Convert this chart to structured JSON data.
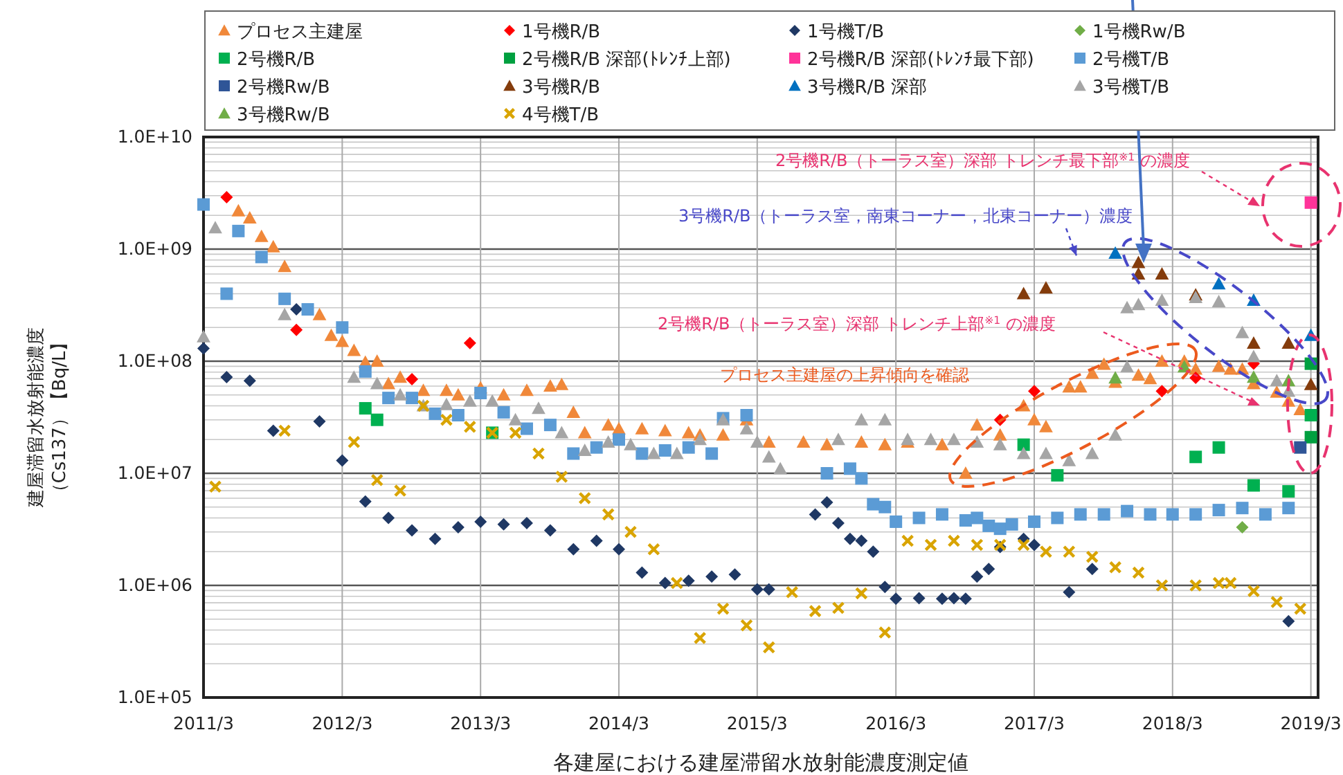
{
  "chart_data": {
    "type": "scatter",
    "xlabel": "各建屋における建屋滞留水放射能濃度測定値",
    "ylabel": "建屋滞留水放射能濃度（Cs137）【Bq/L】",
    "log": "y",
    "grid": true,
    "legend": "top",
    "xlim": [
      "2011-03",
      "2019-03-20"
    ],
    "xticks": [
      {
        "value": "2011-03",
        "label": "2011/3"
      },
      {
        "value": "2012-03",
        "label": "2012/3"
      },
      {
        "value": "2013-03",
        "label": "2013/3"
      },
      {
        "value": "2014-03",
        "label": "2014/3"
      },
      {
        "value": "2015-03",
        "label": "2015/3"
      },
      {
        "value": "2016-03",
        "label": "2016/3"
      },
      {
        "value": "2017-03",
        "label": "2017/3"
      },
      {
        "value": "2018-03",
        "label": "2018/3"
      },
      {
        "value": "2019-03",
        "label": "2019/3"
      }
    ],
    "ylim": [
      100000.0,
      10000000000.0
    ],
    "yticks": [
      {
        "value": 100000.0,
        "label": "1.0E+05"
      },
      {
        "value": 1000000.0,
        "label": "1.0E+06"
      },
      {
        "value": 10000000.0,
        "label": "1.0E+07"
      },
      {
        "value": 100000000.0,
        "label": "1.0E+08"
      },
      {
        "value": 1000000000.0,
        "label": "1.0E+09"
      },
      {
        "value": 10000000000.0,
        "label": "1.0E+10"
      }
    ],
    "annotations": [
      "2号機R/B（トーラス室）深部 トレンチ最下部$^{※1}$ の濃度",
      {
        "text": "3号機R/B（トーラス室，南東コーナー，北東コーナー）濃度",
        "x": "2017-10",
        "y": 920000000.0
      },
      "2号機R/B（トーラス室）深部 トレンチ上部$^{※1}$ の濃度",
      "プロセス主建屋の上昇傾向を確認"
    ],
    "series": [
      {
        "name": "プロセス主建屋",
        "color": "#f0883a",
        "marker": "triangle",
        "x": [
          "2011-06",
          "2011-07",
          "2011-08",
          "2011-09",
          "2011-10",
          "2012-01",
          "2012-02",
          "2012-03",
          "2012-04",
          "2012-05",
          "2012-06",
          "2012-07",
          "2012-08",
          "2012-10",
          "2012-12",
          "2013-01",
          "2013-03",
          "2013-05",
          "2013-07",
          "2013-09",
          "2013-10",
          "2013-11",
          "2013-12",
          "2014-02",
          "2014-03",
          "2014-05",
          "2014-07",
          "2014-09",
          "2014-10",
          "2014-12",
          "2015-02",
          "2015-04",
          "2015-07",
          "2015-09",
          "2015-12",
          "2016-02",
          "2016-04",
          "2016-07",
          "2016-09",
          "2016-10",
          "2016-12",
          "2017-02",
          "2017-03",
          "2017-04",
          "2017-06",
          "2017-07",
          "2017-08",
          "2017-09",
          "2017-10",
          "2017-12",
          "2018-01",
          "2018-02",
          "2018-04",
          "2018-05",
          "2018-07",
          "2018-08",
          "2018-09",
          "2018-10",
          "2018-12",
          "2019-01",
          "2019-02"
        ],
        "values": [
          2200000000.0,
          1900000000.0,
          1300000000.0,
          1050000000.0,
          700000000.0,
          260000000.0,
          170000000.0,
          150000000.0,
          125000000.0,
          98000000.0,
          100000000.0,
          63000000.0,
          72000000.0,
          55000000.0,
          55000000.0,
          50000000.0,
          58000000.0,
          50000000.0,
          55000000.0,
          60000000.0,
          62000000.0,
          35000000.0,
          23000000.0,
          27000000.0,
          25000000.0,
          25000000.0,
          24000000.0,
          23000000.0,
          22000000.0,
          22000000.0,
          30000000.0,
          19000000.0,
          19000000.0,
          18000000.0,
          19000000.0,
          18000000.0,
          19000000.0,
          18000000.0,
          10000000.0,
          27000000.0,
          22000000.0,
          40000000.0,
          30000000.0,
          26000000.0,
          59000000.0,
          59000000.0,
          78000000.0,
          94000000.0,
          65000000.0,
          75000000.0,
          70000000.0,
          100000000.0,
          100000000.0,
          85000000.0,
          90000000.0,
          85000000.0,
          85000000.0,
          63000000.0,
          53000000.0,
          44000000.0,
          37000000.0
        ]
      },
      {
        "name": "1号機R/B",
        "color": "#ff0000",
        "marker": "diamond",
        "x": [
          "2011-05",
          "2011-11",
          "2012-09",
          "2013-02",
          "2016-12",
          "2017-03",
          "2018-02",
          "2018-05",
          "2018-10"
        ],
        "values": [
          2900000000.0,
          190000000.0,
          69000000.0,
          145000000.0,
          30000000.0,
          54000000.0,
          54000000.0,
          71000000.0,
          95000000.0
        ]
      },
      {
        "name": "1号機T/B",
        "color": "#1f3864",
        "marker": "diamond",
        "x": [
          "2011-03",
          "2011-05",
          "2011-07",
          "2011-09",
          "2011-11",
          "2012-01",
          "2012-03",
          "2012-05",
          "2012-07",
          "2012-09",
          "2012-11",
          "2013-01",
          "2013-03",
          "2013-05",
          "2013-07",
          "2013-09",
          "2013-11",
          "2014-01",
          "2014-03",
          "2014-05",
          "2014-07",
          "2014-09",
          "2014-11",
          "2015-01",
          "2015-03",
          "2015-04",
          "2015-08",
          "2015-09",
          "2015-10",
          "2015-11",
          "2015-12",
          "2016-01",
          "2016-02",
          "2016-03",
          "2016-05",
          "2016-07",
          "2016-08",
          "2016-09",
          "2016-10",
          "2016-11",
          "2016-12",
          "2017-02",
          "2017-03",
          "2017-06",
          "2017-08",
          "2019-01"
        ],
        "values": [
          130000000.0,
          72000000.0,
          67000000.0,
          24000000.0,
          290000000.0,
          29000000.0,
          13000000.0,
          5600000.0,
          4000000.0,
          3100000.0,
          2600000.0,
          3300000.0,
          3700000.0,
          3500000.0,
          3600000.0,
          3100000.0,
          2100000.0,
          2500000.0,
          2100000.0,
          1300000.0,
          1050000.0,
          1100000.0,
          1200000.0,
          1250000.0,
          920000.0,
          920000.0,
          4300000.0,
          5500000.0,
          3600000.0,
          2600000.0,
          2500000.0,
          2000000.0,
          970000.0,
          760000.0,
          770000.0,
          760000.0,
          770000.0,
          760000.0,
          1200000.0,
          1400000.0,
          2200000.0,
          2600000.0,
          2300000.0,
          870000.0,
          1400000.0,
          480000.0
        ]
      },
      {
        "name": "1号機Rw/B",
        "color": "#70ad47",
        "marker": "diamond",
        "x": [
          "2018-09"
        ],
        "values": [
          3300000.0
        ]
      },
      {
        "name": "2号機R/B",
        "color": "#00b050",
        "marker": "square",
        "x": [
          "2012-05",
          "2012-06",
          "2013-04",
          "2017-02",
          "2017-05",
          "2018-05",
          "2018-07",
          "2018-10",
          "2019-01",
          "2019-03"
        ],
        "values": [
          38000000.0,
          30000000.0,
          23000000.0,
          18000000.0,
          9600000.0,
          14000000.0,
          17000000.0,
          7800000.0,
          6900000.0,
          33000000.0
        ]
      },
      {
        "name": "2号機R/B 深部(ﾄﾚﾝﾁ上部)",
        "color": "#00a040",
        "marker": "square",
        "x": [
          "2019-03",
          "2019-03"
        ],
        "values": [
          95000000.0,
          21000000.0
        ]
      },
      {
        "name": "2号機R/B 深部(ﾄﾚﾝﾁ最下部)",
        "color": "#ff3399",
        "marker": "square",
        "x": [
          "2019-03"
        ],
        "values": [
          2600000000.0
        ]
      },
      {
        "name": "2号機T/B",
        "color": "#5b9bd5",
        "marker": "square",
        "x": [
          "2011-03",
          "2011-05",
          "2011-06",
          "2011-08",
          "2011-10",
          "2011-12",
          "2012-03",
          "2012-05",
          "2012-07",
          "2012-09",
          "2012-11",
          "2013-01",
          "2013-03",
          "2013-05",
          "2013-07",
          "2013-09",
          "2013-11",
          "2014-01",
          "2014-03",
          "2014-05",
          "2014-07",
          "2014-09",
          "2014-11",
          "2014-12",
          "2015-02",
          "2015-09",
          "2015-11",
          "2015-12",
          "2016-01",
          "2016-02",
          "2016-03",
          "2016-05",
          "2016-07",
          "2016-09",
          "2016-10",
          "2016-11",
          "2016-12",
          "2017-01",
          "2017-03",
          "2017-05",
          "2017-07",
          "2017-09",
          "2017-11",
          "2018-01",
          "2018-03",
          "2018-05",
          "2018-07",
          "2018-09",
          "2018-11",
          "2019-01"
        ],
        "values": [
          2500000000.0,
          400000000.0,
          1450000000.0,
          850000000.0,
          360000000.0,
          290000000.0,
          200000000.0,
          81000000.0,
          47000000.0,
          47000000.0,
          34000000.0,
          33000000.0,
          52000000.0,
          35000000.0,
          25000000.0,
          27000000.0,
          15000000.0,
          17000000.0,
          20000000.0,
          15000000.0,
          16000000.0,
          17000000.0,
          15000000.0,
          31000000.0,
          33000000.0,
          10000000.0,
          11000000.0,
          9000000.0,
          5300000.0,
          5000000.0,
          3700000.0,
          4000000.0,
          4300000.0,
          3800000.0,
          4000000.0,
          3400000.0,
          3200000.0,
          3500000.0,
          3700000.0,
          4000000.0,
          4300000.0,
          4300000.0,
          4600000.0,
          4300000.0,
          4300000.0,
          4300000.0,
          4700000.0,
          4900000.0,
          4300000.0,
          4900000.0
        ]
      },
      {
        "name": "2号機Rw/B",
        "color": "#2f5597",
        "marker": "square",
        "x": [
          "2019-02"
        ],
        "values": [
          17000000.0
        ]
      },
      {
        "name": "3号機R/B",
        "color": "#843c0c",
        "marker": "triangle",
        "x": [
          "2017-02",
          "2017-04",
          "2017-12",
          "2017-12",
          "2018-02",
          "2018-05",
          "2018-10",
          "2019-01",
          "2019-03"
        ],
        "values": [
          400000000.0,
          450000000.0,
          760000000.0,
          600000000.0,
          600000000.0,
          390000000.0,
          145000000.0,
          145000000.0,
          62000000.0
        ]
      },
      {
        "name": "3号機R/B 深部",
        "color": "#0070c0",
        "marker": "triangle",
        "x": [
          "2017-10",
          "2018-07",
          "2018-10",
          "2019-03"
        ],
        "values": [
          920000000.0,
          490000000.0,
          350000000.0,
          170000000.0
        ]
      },
      {
        "name": "3号機T/B",
        "color": "#a5a5a5",
        "marker": "triangle",
        "x": [
          "2011-03",
          "2011-04",
          "2011-10",
          "2012-04",
          "2012-06",
          "2012-08",
          "2012-10",
          "2012-12",
          "2013-02",
          "2013-04",
          "2013-06",
          "2013-08",
          "2013-10",
          "2013-12",
          "2014-02",
          "2014-04",
          "2014-06",
          "2014-08",
          "2014-10",
          "2014-12",
          "2015-02",
          "2015-03",
          "2015-04",
          "2015-05",
          "2015-10",
          "2015-12",
          "2016-02",
          "2016-04",
          "2016-06",
          "2016-08",
          "2016-10",
          "2016-12",
          "2017-02",
          "2017-04",
          "2017-06",
          "2017-08",
          "2017-10",
          "2017-11",
          "2017-11",
          "2017-12",
          "2018-02",
          "2018-05",
          "2018-07",
          "2018-09",
          "2018-10",
          "2018-12",
          "2019-01"
        ],
        "values": [
          165000000.0,
          1550000000.0,
          260000000.0,
          72000000.0,
          63000000.0,
          50000000.0,
          40000000.0,
          41000000.0,
          44000000.0,
          44000000.0,
          30000000.0,
          38000000.0,
          23000000.0,
          16000000.0,
          19000000.0,
          18000000.0,
          15000000.0,
          15000000.0,
          20000000.0,
          30000000.0,
          25000000.0,
          19000000.0,
          14000000.0,
          11000000.0,
          20000000.0,
          30000000.0,
          30000000.0,
          20000000.0,
          20000000.0,
          20000000.0,
          19000000.0,
          18000000.0,
          15000000.0,
          15000000.0,
          13000000.0,
          15000000.0,
          22000000.0,
          89000000.0,
          300000000.0,
          320000000.0,
          350000000.0,
          370000000.0,
          340000000.0,
          180000000.0,
          110000000.0,
          67000000.0,
          54000000.0
        ]
      },
      {
        "name": "3号機Rw/B",
        "color": "#70ad47",
        "marker": "triangle",
        "x": [
          "2017-10",
          "2018-04",
          "2018-10",
          "2019-01"
        ],
        "values": [
          71000000.0,
          89000000.0,
          72000000.0,
          67000000.0
        ]
      },
      {
        "name": "4号機T/B",
        "color": "#d9a400",
        "marker": "cross",
        "x": [
          "2011-04",
          "2011-10",
          "2012-04",
          "2012-06",
          "2012-08",
          "2012-10",
          "2012-12",
          "2013-02",
          "2013-04",
          "2013-06",
          "2013-08",
          "2013-10",
          "2013-12",
          "2014-02",
          "2014-04",
          "2014-06",
          "2014-08",
          "2014-10",
          "2014-12",
          "2015-02",
          "2015-04",
          "2015-06",
          "2015-08",
          "2015-10",
          "2015-12",
          "2016-02",
          "2016-04",
          "2016-06",
          "2016-08",
          "2016-10",
          "2016-12",
          "2017-02",
          "2017-04",
          "2017-06",
          "2017-08",
          "2017-10",
          "2017-12",
          "2018-02",
          "2018-05",
          "2018-07",
          "2018-08",
          "2018-10",
          "2018-12",
          "2019-02"
        ],
        "values": [
          7600000.0,
          24000000.0,
          19000000.0,
          8700000.0,
          7000000.0,
          40000000.0,
          30000000.0,
          26000000.0,
          23000000.0,
          23000000.0,
          15000000.0,
          9300000.0,
          6000000.0,
          4300000.0,
          3000000.0,
          2100000.0,
          1050000.0,
          340000.0,
          620000.0,
          440000.0,
          280000.0,
          870000.0,
          590000.0,
          630000.0,
          850000.0,
          380000.0,
          2500000.0,
          2300000.0,
          2500000.0,
          2300000.0,
          2300000.0,
          2300000.0,
          2000000.0,
          2000000.0,
          1800000.0,
          1450000.0,
          1300000.0,
          1000000.0,
          1000000.0,
          1050000.0,
          1050000.0,
          890000.0,
          710000.0,
          620000.0
        ]
      }
    ]
  }
}
